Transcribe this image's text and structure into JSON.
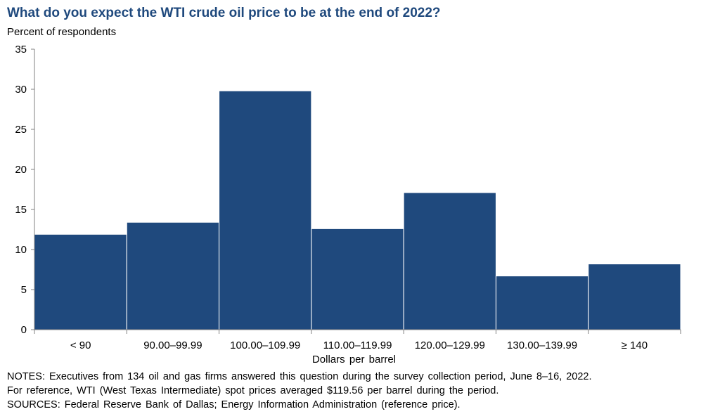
{
  "chart_data": {
    "type": "bar",
    "title": "What do you expect the WTI crude oil price to be at the end of 2022?",
    "ylabel": "Percent of respondents",
    "xlabel": "Dollars per barrel",
    "categories": [
      "< 90",
      "90.00–99.99",
      "100.00–109.99",
      "110.00–119.99",
      "120.00–129.99",
      "130.00–139.99",
      "≥ 140"
    ],
    "values": [
      11.9,
      13.4,
      29.8,
      12.6,
      17.1,
      6.7,
      8.2
    ],
    "ylim": [
      0,
      35
    ],
    "yticks": [
      0,
      5,
      10,
      15,
      20,
      25,
      30,
      35
    ],
    "grid": false,
    "bar_color": "#1f497d"
  },
  "notes": {
    "line1": "NOTES: Executives from 134 oil and gas firms answered this question during the survey collection period, June 8–16, 2022.",
    "line2": "For reference, WTI (West Texas Intermediate) spot prices averaged $119.56 per barrel during the period.",
    "line3": "SOURCES: Federal Reserve Bank of Dallas; Energy Information Administration (reference price)."
  }
}
